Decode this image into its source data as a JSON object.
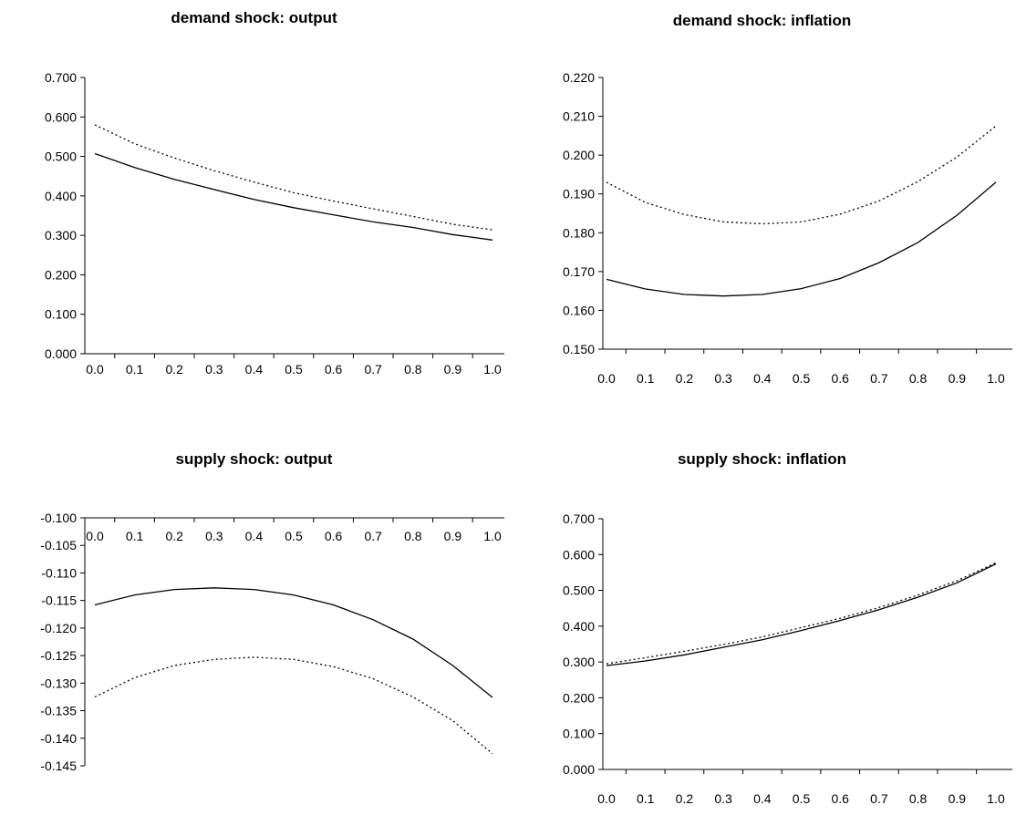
{
  "chart_data": [
    {
      "type": "line",
      "title": "demand shock: output",
      "x": [
        0.0,
        0.1,
        0.2,
        0.3,
        0.4,
        0.5,
        0.6,
        0.7,
        0.8,
        0.9,
        1.0
      ],
      "xticklabels": [
        "0.0",
        "0.1",
        "0.2",
        "0.3",
        "0.4",
        "0.5",
        "0.6",
        "0.7",
        "0.8",
        "0.9",
        "1.0"
      ],
      "yticklabels": [
        "0.000",
        "0.100",
        "0.200",
        "0.300",
        "0.400",
        "0.500",
        "0.600",
        "0.700"
      ],
      "ylim": [
        0.0,
        0.7
      ],
      "x_axis_at": 0.0,
      "grid": false,
      "series": [
        {
          "style": "solid",
          "values": [
            0.507,
            0.472,
            0.442,
            0.416,
            0.391,
            0.37,
            0.352,
            0.334,
            0.32,
            0.302,
            0.288
          ]
        },
        {
          "style": "dotted",
          "values": [
            0.58,
            0.532,
            0.496,
            0.464,
            0.435,
            0.408,
            0.387,
            0.367,
            0.348,
            0.328,
            0.314
          ]
        }
      ]
    },
    {
      "type": "line",
      "title": "demand shock: inflation",
      "x": [
        0.0,
        0.1,
        0.2,
        0.3,
        0.4,
        0.5,
        0.6,
        0.7,
        0.8,
        0.9,
        1.0
      ],
      "xticklabels": [
        "0.0",
        "0.1",
        "0.2",
        "0.3",
        "0.4",
        "0.5",
        "0.6",
        "0.7",
        "0.8",
        "0.9",
        "1.0"
      ],
      "yticklabels": [
        "0.150",
        "0.160",
        "0.170",
        "0.180",
        "0.190",
        "0.200",
        "0.210",
        "0.220"
      ],
      "ylim": [
        0.15,
        0.22
      ],
      "x_axis_at": 0.15,
      "grid": false,
      "series": [
        {
          "style": "solid",
          "values": [
            0.168,
            0.1655,
            0.1641,
            0.1637,
            0.1641,
            0.1656,
            0.1682,
            0.1723,
            0.1775,
            0.1845,
            0.193
          ]
        },
        {
          "style": "dotted",
          "values": [
            0.193,
            0.1878,
            0.1847,
            0.1828,
            0.1823,
            0.1828,
            0.1848,
            0.1882,
            0.1932,
            0.1995,
            0.2075
          ]
        }
      ]
    },
    {
      "type": "line",
      "title": "supply shock: output",
      "x": [
        0.0,
        0.1,
        0.2,
        0.3,
        0.4,
        0.5,
        0.6,
        0.7,
        0.8,
        0.9,
        1.0
      ],
      "xticklabels": [
        "0.0",
        "0.1",
        "0.2",
        "0.3",
        "0.4",
        "0.5",
        "0.6",
        "0.7",
        "0.8",
        "0.9",
        "1.0"
      ],
      "yticklabels": [
        "-0.145",
        "-0.140",
        "-0.135",
        "-0.130",
        "-0.125",
        "-0.120",
        "-0.115",
        "-0.110",
        "-0.105",
        "-0.100"
      ],
      "ylim": [
        -0.145,
        -0.1
      ],
      "x_axis_at": -0.1,
      "grid": false,
      "series": [
        {
          "style": "solid",
          "values": [
            -0.1158,
            -0.114,
            -0.113,
            -0.1127,
            -0.113,
            -0.114,
            -0.1158,
            -0.1185,
            -0.122,
            -0.1268,
            -0.1326
          ]
        },
        {
          "style": "dotted",
          "values": [
            -0.1325,
            -0.129,
            -0.1268,
            -0.1257,
            -0.1253,
            -0.1257,
            -0.127,
            -0.1292,
            -0.1325,
            -0.1368,
            -0.1428
          ]
        }
      ]
    },
    {
      "type": "line",
      "title": "supply shock: inflation",
      "x": [
        0.0,
        0.1,
        0.2,
        0.3,
        0.4,
        0.5,
        0.6,
        0.7,
        0.8,
        0.9,
        1.0
      ],
      "xticklabels": [
        "0.0",
        "0.1",
        "0.2",
        "0.3",
        "0.4",
        "0.5",
        "0.6",
        "0.7",
        "0.8",
        "0.9",
        "1.0"
      ],
      "yticklabels": [
        "0.000",
        "0.100",
        "0.200",
        "0.300",
        "0.400",
        "0.500",
        "0.600",
        "0.700"
      ],
      "ylim": [
        0.0,
        0.7
      ],
      "x_axis_at": 0.0,
      "grid": false,
      "series": [
        {
          "style": "solid",
          "values": [
            0.29,
            0.303,
            0.32,
            0.341,
            0.362,
            0.388,
            0.416,
            0.446,
            0.481,
            0.521,
            0.574
          ]
        },
        {
          "style": "dotted",
          "values": [
            0.295,
            0.312,
            0.33,
            0.349,
            0.37,
            0.396,
            0.422,
            0.452,
            0.487,
            0.527,
            0.577
          ]
        }
      ]
    }
  ]
}
